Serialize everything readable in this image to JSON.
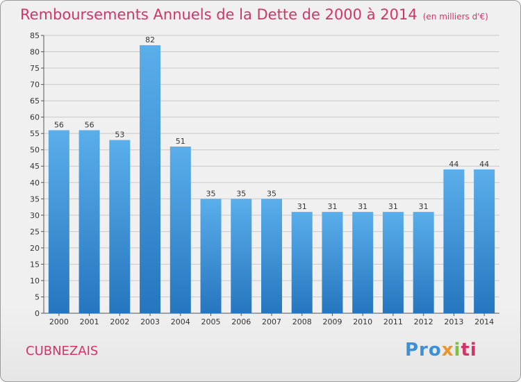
{
  "title": "Remboursements Annuels de la Dette de 2000 à 2014",
  "subtitle": "(en milliers d'€)",
  "commune": "CUBNEZAIS",
  "logo": {
    "p1": "Pro",
    "p2": "x",
    "p3": "i",
    "p4": "ti"
  },
  "colors": {
    "bar_top": "#5aaeea",
    "bar_bottom": "#2676bf",
    "title": "#d0356a"
  },
  "chart_data": {
    "type": "bar",
    "title": "Remboursements Annuels de la Dette de 2000 à 2014",
    "subtitle": "(en milliers d'€)",
    "categories": [
      "2000",
      "2001",
      "2002",
      "2003",
      "2004",
      "2005",
      "2006",
      "2007",
      "2008",
      "2009",
      "2010",
      "2011",
      "2012",
      "2013",
      "2014"
    ],
    "values": [
      56,
      56,
      53,
      82,
      51,
      35,
      35,
      35,
      31,
      31,
      31,
      31,
      31,
      44,
      44
    ],
    "ylim": [
      0,
      85
    ],
    "yticks": [
      0,
      5,
      10,
      15,
      20,
      25,
      30,
      35,
      40,
      45,
      50,
      55,
      60,
      65,
      70,
      75,
      80,
      85
    ],
    "grid": true,
    "data_labels": true
  }
}
